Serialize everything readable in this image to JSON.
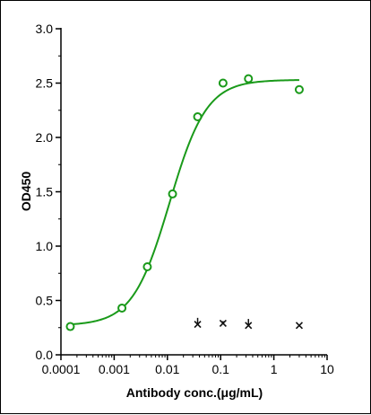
{
  "chart_data": {
    "type": "scatter",
    "title": "",
    "xlabel": "Antibody conc.(μg/mL)",
    "ylabel": "OD450",
    "xscale": "log",
    "xlim": [
      0.0001,
      10
    ],
    "ylim": [
      0,
      3.0
    ],
    "x_ticks": [
      0.0001,
      0.001,
      0.01,
      0.1,
      1,
      10
    ],
    "x_tick_labels": [
      "0.0001",
      "0.001",
      "0.01",
      "0.1",
      "1",
      "10"
    ],
    "y_ticks": [
      0,
      0.5,
      1.0,
      1.5,
      2.0,
      2.5,
      3.0
    ],
    "y_tick_labels": [
      "0.0",
      "0.5",
      "1.0",
      "1.5",
      "2.0",
      "2.5",
      "3.0"
    ],
    "grid": false,
    "legend": "none",
    "series": [
      {
        "marker": "circle",
        "color": "#1a9a1a",
        "x": [
          0.00015,
          0.0014,
          0.0042,
          0.0125,
          0.037,
          0.111,
          0.333,
          3.0
        ],
        "y": [
          0.26,
          0.43,
          0.81,
          1.48,
          2.19,
          2.5,
          2.54,
          2.44
        ],
        "fit": {
          "model": "4PL",
          "bottom": 0.27,
          "top": 2.53,
          "ec50": 0.011,
          "hill": 1.25,
          "color": "#1a9a1a"
        }
      },
      {
        "marker": "x",
        "color": "#111111",
        "x": [
          0.037,
          0.111,
          0.333,
          3.0
        ],
        "y": [
          0.28,
          0.29,
          0.27,
          0.27
        ],
        "err": [
          0.06,
          0.02,
          0.06,
          0.01
        ]
      }
    ]
  }
}
